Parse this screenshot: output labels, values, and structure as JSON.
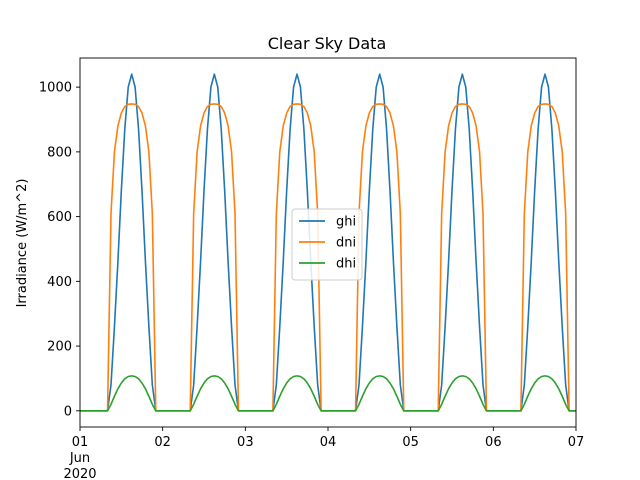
{
  "chart_data": {
    "type": "line",
    "title": "Clear Sky Data",
    "xlabel": "",
    "ylabel": "Irradiance (W/m^2)",
    "xlim": [
      "2020-06-01",
      "2020-06-07"
    ],
    "ylim": [
      -50,
      1090
    ],
    "x_ticks": [
      {
        "day": 1,
        "lines": [
          "01",
          "Jun",
          "2020"
        ]
      },
      {
        "day": 2,
        "lines": [
          "02"
        ]
      },
      {
        "day": 3,
        "lines": [
          "03"
        ]
      },
      {
        "day": 4,
        "lines": [
          "04"
        ]
      },
      {
        "day": 5,
        "lines": [
          "05"
        ]
      },
      {
        "day": 6,
        "lines": [
          "06"
        ]
      },
      {
        "day": 7,
        "lines": [
          "07"
        ]
      }
    ],
    "y_ticks": [
      0,
      200,
      400,
      600,
      800,
      1000
    ],
    "legend_position": "center",
    "grid": false,
    "x": [
      "2020-06-01 00:00",
      "2020-06-01 08:00",
      "2020-06-01 09:00",
      "2020-06-01 10:00",
      "2020-06-01 11:00",
      "2020-06-01 12:00",
      "2020-06-01 13:00",
      "2020-06-01 14:00",
      "2020-06-01 15:00",
      "2020-06-01 16:00",
      "2020-06-01 17:00",
      "2020-06-01 18:00",
      "2020-06-01 19:00",
      "2020-06-01 20:00",
      "2020-06-01 21:00",
      "2020-06-01 22:00",
      "2020-06-01 23:00",
      "2020-06-02 08:00",
      "2020-06-02 09:00",
      "2020-06-02 10:00",
      "2020-06-02 11:00",
      "2020-06-02 12:00",
      "2020-06-02 13:00",
      "2020-06-02 14:00",
      "2020-06-02 15:00",
      "2020-06-02 16:00",
      "2020-06-02 17:00",
      "2020-06-02 18:00",
      "2020-06-02 19:00",
      "2020-06-02 20:00",
      "2020-06-02 21:00",
      "2020-06-02 22:00",
      "2020-06-02 23:00",
      "2020-06-03 08:00",
      "2020-06-03 09:00",
      "2020-06-03 10:00",
      "2020-06-03 11:00",
      "2020-06-03 12:00",
      "2020-06-03 13:00",
      "2020-06-03 14:00",
      "2020-06-03 15:00",
      "2020-06-03 16:00",
      "2020-06-03 17:00",
      "2020-06-03 18:00",
      "2020-06-03 19:00",
      "2020-06-03 20:00",
      "2020-06-03 21:00",
      "2020-06-03 22:00",
      "2020-06-03 23:00",
      "2020-06-04 08:00",
      "2020-06-04 09:00",
      "2020-06-04 10:00",
      "2020-06-04 11:00",
      "2020-06-04 12:00",
      "2020-06-04 13:00",
      "2020-06-04 14:00",
      "2020-06-04 15:00",
      "2020-06-04 16:00",
      "2020-06-04 17:00",
      "2020-06-04 18:00",
      "2020-06-04 19:00",
      "2020-06-04 20:00",
      "2020-06-04 21:00",
      "2020-06-04 22:00",
      "2020-06-04 23:00",
      "2020-06-05 08:00",
      "2020-06-05 09:00",
      "2020-06-05 10:00",
      "2020-06-05 11:00",
      "2020-06-05 12:00",
      "2020-06-05 13:00",
      "2020-06-05 14:00",
      "2020-06-05 15:00",
      "2020-06-05 16:00",
      "2020-06-05 17:00",
      "2020-06-05 18:00",
      "2020-06-05 19:00",
      "2020-06-05 20:00",
      "2020-06-05 21:00",
      "2020-06-05 22:00",
      "2020-06-05 23:00",
      "2020-06-06 08:00",
      "2020-06-06 09:00",
      "2020-06-06 10:00",
      "2020-06-06 11:00",
      "2020-06-06 12:00",
      "2020-06-06 13:00",
      "2020-06-06 14:00",
      "2020-06-06 15:00",
      "2020-06-06 16:00",
      "2020-06-06 17:00",
      "2020-06-06 18:00",
      "2020-06-06 19:00",
      "2020-06-06 20:00",
      "2020-06-06 21:00",
      "2020-06-06 22:00",
      "2020-06-06 23:00",
      "2020-06-07 00:00"
    ],
    "series": [
      {
        "name": "ghi",
        "color": "#1f77b4",
        "values": [
          0,
          0,
          80,
          260,
          460,
          680,
          870,
          1000,
          1040,
          1000,
          870,
          680,
          460,
          260,
          80,
          0,
          0,
          0,
          80,
          260,
          460,
          680,
          870,
          1000,
          1040,
          1000,
          870,
          680,
          460,
          260,
          80,
          0,
          0,
          0,
          80,
          260,
          460,
          680,
          870,
          1000,
          1040,
          1000,
          870,
          680,
          460,
          260,
          80,
          0,
          0,
          0,
          80,
          260,
          460,
          680,
          870,
          1000,
          1040,
          1000,
          870,
          680,
          460,
          260,
          80,
          0,
          0,
          0,
          80,
          260,
          460,
          680,
          870,
          1000,
          1040,
          1000,
          870,
          680,
          460,
          260,
          80,
          0,
          0,
          0,
          80,
          260,
          460,
          680,
          870,
          1000,
          1040,
          1000,
          870,
          680,
          460,
          260,
          80,
          0,
          0,
          0
        ]
      },
      {
        "name": "dni",
        "color": "#ff7f0e",
        "values": [
          0,
          0,
          610,
          800,
          880,
          920,
          940,
          947,
          948,
          947,
          940,
          920,
          880,
          800,
          610,
          0,
          0,
          0,
          610,
          800,
          880,
          920,
          940,
          947,
          948,
          947,
          940,
          920,
          880,
          800,
          610,
          0,
          0,
          0,
          610,
          800,
          880,
          920,
          940,
          947,
          948,
          947,
          940,
          920,
          880,
          800,
          610,
          0,
          0,
          0,
          610,
          800,
          880,
          920,
          940,
          947,
          948,
          947,
          940,
          920,
          880,
          800,
          610,
          0,
          0,
          0,
          610,
          800,
          880,
          920,
          940,
          947,
          948,
          947,
          940,
          920,
          880,
          800,
          610,
          0,
          0,
          0,
          610,
          800,
          880,
          920,
          940,
          947,
          948,
          947,
          940,
          920,
          880,
          800,
          610,
          0,
          0,
          0
        ]
      },
      {
        "name": "dhi",
        "color": "#2ca02c",
        "values": [
          0,
          0,
          20,
          45,
          68,
          86,
          99,
          106,
          108,
          106,
          99,
          86,
          68,
          45,
          20,
          0,
          0,
          0,
          20,
          45,
          68,
          86,
          99,
          106,
          108,
          106,
          99,
          86,
          68,
          45,
          20,
          0,
          0,
          0,
          20,
          45,
          68,
          86,
          99,
          106,
          108,
          106,
          99,
          86,
          68,
          45,
          20,
          0,
          0,
          0,
          20,
          45,
          68,
          86,
          99,
          106,
          108,
          106,
          99,
          86,
          68,
          45,
          20,
          0,
          0,
          0,
          20,
          45,
          68,
          86,
          99,
          106,
          108,
          106,
          99,
          86,
          68,
          45,
          20,
          0,
          0,
          0,
          20,
          45,
          68,
          86,
          99,
          106,
          108,
          106,
          99,
          86,
          68,
          45,
          20,
          0,
          0,
          0
        ]
      }
    ]
  }
}
